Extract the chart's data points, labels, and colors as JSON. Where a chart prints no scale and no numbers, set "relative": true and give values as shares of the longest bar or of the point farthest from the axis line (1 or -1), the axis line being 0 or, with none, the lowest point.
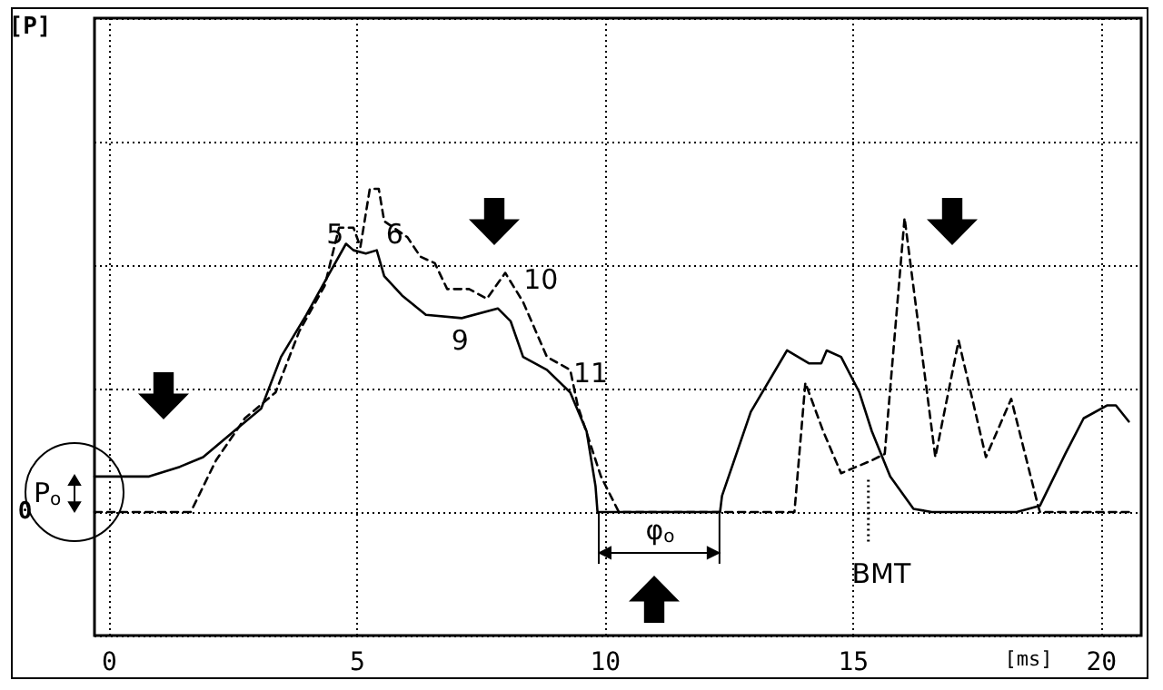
{
  "chart_data": {
    "type": "line",
    "relative": true,
    "xlabel": "[ms]",
    "xlim": [
      -0.3,
      20.8
    ],
    "xticks": [
      0,
      5,
      10,
      15,
      20
    ],
    "grid": true,
    "marker": "none",
    "series": [
      {
        "color": "#000000",
        "line_style": "solid",
        "x": [
          -0.3,
          0.8,
          1.42,
          1.89,
          2.51,
          3.06,
          3.46,
          3.97,
          4.44,
          4.77,
          4.92,
          5.17,
          5.39,
          5.54,
          5.9,
          6.38,
          7.1,
          7.83,
          8.09,
          8.34,
          8.82,
          9.29,
          9.62,
          9.8,
          9.84,
          12.31,
          12.35,
          12.93,
          13.66,
          14.1,
          14.35,
          14.46,
          14.75,
          15.12,
          15.37,
          15.74,
          16.21,
          16.58,
          18.29,
          18.76,
          19.27,
          19.64,
          20.11,
          20.29,
          20.55
        ],
        "values": [
          0.11,
          0.11,
          0.14,
          0.17,
          0.25,
          0.32,
          0.48,
          0.61,
          0.74,
          0.83,
          0.81,
          0.8,
          0.81,
          0.73,
          0.67,
          0.61,
          0.6,
          0.63,
          0.59,
          0.48,
          0.44,
          0.37,
          0.25,
          0.08,
          0,
          0,
          0.05,
          0.31,
          0.5,
          0.46,
          0.46,
          0.5,
          0.48,
          0.37,
          0.25,
          0.11,
          0.01,
          0,
          0,
          0.02,
          0.18,
          0.29,
          0.33,
          0.33,
          0.28
        ]
      },
      {
        "color": "#000000",
        "line_style": "dashed",
        "x": [
          -0.3,
          1.64,
          2.15,
          2.73,
          3.35,
          3.83,
          4.34,
          4.63,
          4.92,
          5.06,
          5.25,
          5.43,
          5.54,
          6.01,
          6.27,
          6.56,
          6.81,
          7.25,
          7.61,
          7.98,
          8.34,
          8.82,
          9.29,
          9.44,
          9.91,
          10.27,
          13.81,
          14.03,
          14.39,
          14.75,
          15.37,
          15.63,
          16.03,
          16.65,
          17.12,
          17.67,
          18.18,
          18.72,
          18.76,
          20.58
        ],
        "values": [
          0,
          0,
          0.16,
          0.29,
          0.37,
          0.56,
          0.7,
          0.88,
          0.88,
          0.82,
          1,
          1,
          0.9,
          0.85,
          0.79,
          0.77,
          0.69,
          0.69,
          0.66,
          0.74,
          0.65,
          0.48,
          0.44,
          0.33,
          0.11,
          0,
          0,
          0.4,
          0.25,
          0.12,
          0.16,
          0.18,
          0.91,
          0.17,
          0.53,
          0.17,
          0.35,
          0.02,
          0,
          0
        ]
      }
    ],
    "annotations": [
      "[P]",
      "0",
      "5",
      "6",
      "9",
      "10",
      "11",
      "P$_{o}$",
      "φ$_{o}$",
      "BMT"
    ]
  }
}
